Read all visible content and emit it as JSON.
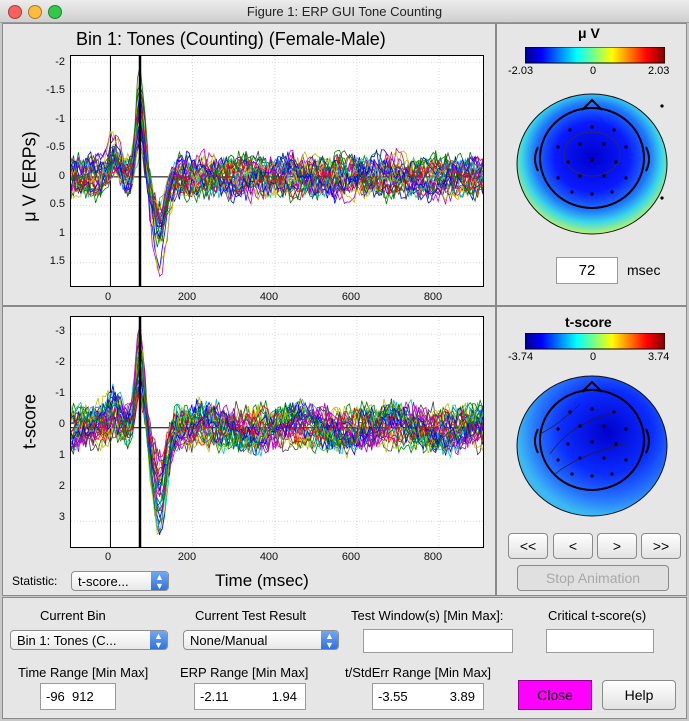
{
  "window": {
    "title": "Figure 1: ERP GUI Tone Counting"
  },
  "colors": {
    "close_button": "#ff00ff",
    "cursor_line": "#000000"
  },
  "erp_plot": {
    "title": "Bin 1: Tones (Counting) (Female-Male)",
    "ylabel": "μ V (ERPs)",
    "yticks": [
      "-2",
      "-1.5",
      "-1",
      "-0.5",
      "0",
      "0.5",
      "1",
      "1.5"
    ],
    "xticks": [
      "0",
      "200",
      "400",
      "600",
      "800"
    ]
  },
  "tscore_plot": {
    "ylabel": "t-score",
    "xlabel": "Time (msec)",
    "yticks": [
      "-3",
      "-2",
      "-1",
      "0",
      "1",
      "2",
      "3"
    ],
    "xticks": [
      "0",
      "200",
      "400",
      "600",
      "800"
    ]
  },
  "chart_data": [
    {
      "type": "line",
      "title": "Bin 1: Tones (Counting) (Female-Male)",
      "xlabel": "",
      "ylabel": "μ V (ERPs)",
      "xlim": [
        -96,
        912
      ],
      "ylim": [
        -2.11,
        1.94
      ],
      "y_inverted": true,
      "cursor_x": 72,
      "series_count": 30
    },
    {
      "type": "line",
      "title": "",
      "xlabel": "Time (msec)",
      "ylabel": "t-score",
      "xlim": [
        -96,
        912
      ],
      "ylim": [
        -3.55,
        3.89
      ],
      "y_inverted": true,
      "cursor_x": 72,
      "series_count": 30
    }
  ],
  "topo_uv": {
    "title": "μ V",
    "min": "-2.03",
    "mid": "0",
    "max": "2.03"
  },
  "topo_t": {
    "title": "t-score",
    "min": "-3.74",
    "mid": "0",
    "max": "3.74"
  },
  "time_field": {
    "value": "72",
    "unit": "msec"
  },
  "anim": {
    "first": "<<",
    "prev": "<",
    "next": ">",
    "last": ">>",
    "stop": "Stop Animation"
  },
  "statistic": {
    "label": "Statistic:",
    "value": "t-score..."
  },
  "controls": {
    "current_bin_label": "Current Bin",
    "current_bin_value": "Bin 1: Tones (C...",
    "test_result_label": "Current Test Result",
    "test_result_value": "None/Manual",
    "test_window_label": "Test Window(s) [Min Max]:",
    "test_window_value": "",
    "critical_label": "Critical t-score(s)",
    "critical_value": "",
    "time_range_label": "Time Range [Min Max]",
    "time_range_value": "-96  912",
    "erp_range_label": "ERP Range [Min Max]",
    "erp_range_min": "-2.11",
    "erp_range_max": "1.94",
    "t_range_label": "t/StdErr Range [Min Max]",
    "t_range_min": "-3.55",
    "t_range_max": "3.89",
    "close": "Close",
    "help": "Help"
  }
}
